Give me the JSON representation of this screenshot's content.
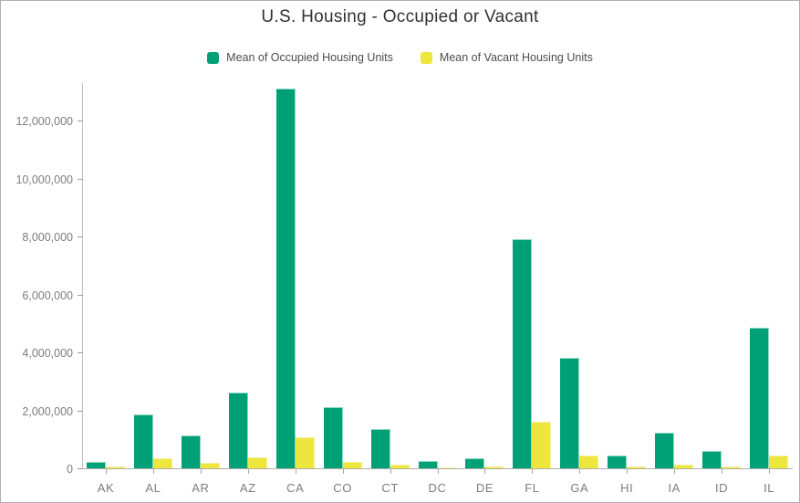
{
  "window": {
    "background": "#ffffff",
    "border_color": "#b0b0b0"
  },
  "header": {
    "title": "U.S. Housing - Occupied or Vacant"
  },
  "legend": {
    "items": [
      {
        "label": "Mean of Occupied Housing Units",
        "color": "#00a077"
      },
      {
        "label": "Mean of Vacant Housing Units",
        "color": "#ece63d"
      }
    ]
  },
  "chart_data": {
    "type": "bar",
    "title": "U.S. Housing - Occupied or Vacant",
    "categories": [
      "AK",
      "AL",
      "AR",
      "AZ",
      "CA",
      "CO",
      "CT",
      "DC",
      "DE",
      "FL",
      "GA",
      "HI",
      "IA",
      "ID",
      "IL"
    ],
    "series": [
      {
        "name": "Mean of Occupied Housing Units",
        "color": "#00a077",
        "values": [
          230000,
          1850000,
          1140000,
          2600000,
          13100000,
          2100000,
          1360000,
          260000,
          340000,
          7900000,
          3820000,
          440000,
          1220000,
          610000,
          4850000
        ]
      },
      {
        "name": "Mean of Vacant Housing Units",
        "color": "#ece63d",
        "values": [
          60000,
          360000,
          180000,
          370000,
          1080000,
          215000,
          140000,
          30000,
          75000,
          1600000,
          450000,
          75000,
          130000,
          70000,
          450000
        ]
      }
    ],
    "xlabel": "",
    "ylabel": "",
    "ylim": [
      0,
      13400000
    ],
    "yticks": [
      {
        "value": 0,
        "label": "0"
      },
      {
        "value": 2000000,
        "label": "2,000,000"
      },
      {
        "value": 4000000,
        "label": "4,000,000"
      },
      {
        "value": 6000000,
        "label": "6,000,000"
      },
      {
        "value": 8000000,
        "label": "8,000,000"
      },
      {
        "value": 10000000,
        "label": "10,000,000"
      },
      {
        "value": 12000000,
        "label": "12,000,000"
      }
    ],
    "grid": false,
    "legend_position": "top"
  }
}
